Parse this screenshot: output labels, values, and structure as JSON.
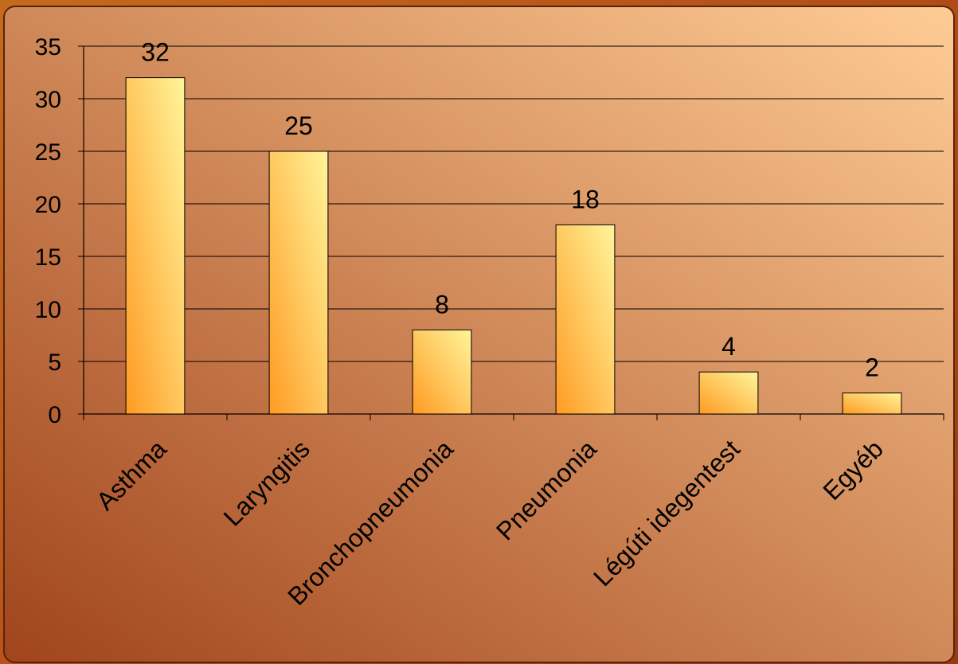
{
  "chart_data": {
    "type": "bar",
    "title": "",
    "xlabel": "",
    "ylabel": "",
    "categories": [
      "Asthma",
      "Laryngitis",
      "Bronchopneumonia",
      "Pneumonia",
      "Légúti idegentest",
      "Egyéb"
    ],
    "values": [
      32,
      25,
      8,
      18,
      4,
      2
    ],
    "data_labels": [
      "32",
      "25",
      "8",
      "18",
      "4",
      "2"
    ],
    "ylim": [
      0,
      35
    ],
    "yticks": [
      0,
      5,
      10,
      15,
      20,
      25,
      30,
      35
    ],
    "ytick_labels": [
      "0",
      "5",
      "10",
      "15",
      "20",
      "25",
      "30",
      "35"
    ],
    "grid": true,
    "legend": "none"
  },
  "colors": {
    "bar_light": "#fff59a",
    "bar_mid": "#ffc45a",
    "bar_dark": "#ff9a22",
    "plot_bg_light": "#ffcc95",
    "plot_bg_dark": "#a0441c",
    "frame_border": "#5a2408"
  }
}
